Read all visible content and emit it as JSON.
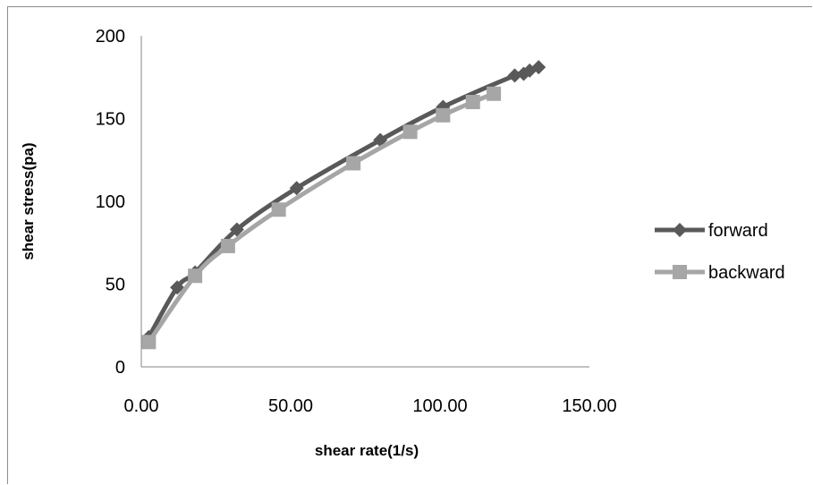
{
  "chart_data": {
    "type": "line",
    "xlabel": "shear rate(1/s)",
    "ylabel": "shear stress(pa)",
    "xlim": [
      0,
      150
    ],
    "ylim": [
      0,
      200
    ],
    "x_ticks": [
      "0.00",
      "50.00",
      "100.00",
      "150.00"
    ],
    "y_ticks": [
      "0",
      "50",
      "100",
      "150",
      "200"
    ],
    "grid": false,
    "legend_position": "right",
    "series": [
      {
        "name": "forward",
        "color": "#595959",
        "marker": "diamond",
        "x": [
          2.5,
          12,
          18,
          32,
          52,
          80,
          101,
          125,
          128,
          130,
          133
        ],
        "y": [
          18,
          48,
          57,
          83,
          108,
          137,
          157,
          176,
          177,
          179,
          181
        ]
      },
      {
        "name": "backward",
        "color": "#a6a6a6",
        "marker": "square",
        "x": [
          2.5,
          18,
          29,
          46,
          71,
          90,
          101,
          111,
          118
        ],
        "y": [
          15,
          55,
          73,
          95,
          123,
          142,
          152,
          160,
          165
        ]
      }
    ]
  }
}
